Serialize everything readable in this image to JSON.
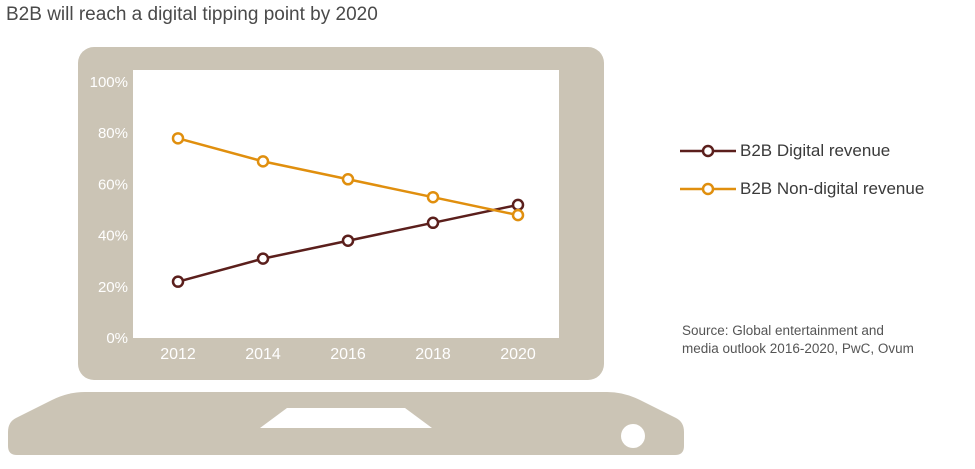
{
  "chart_data": {
    "type": "line",
    "title": "B2B will reach a digital tipping point by 2020",
    "categories": [
      "2012",
      "2014",
      "2016",
      "2018",
      "2020"
    ],
    "series": [
      {
        "name": "B2B Digital revenue",
        "color": "#5b1f1c",
        "values": [
          22,
          31,
          38,
          45,
          52
        ]
      },
      {
        "name": "B2B Non-digital revenue",
        "color": "#e08f0e",
        "values": [
          78,
          69,
          62,
          55,
          48
        ]
      }
    ],
    "y_ticks": [
      "0%",
      "20%",
      "40%",
      "60%",
      "80%",
      "100%"
    ],
    "ylim": [
      0,
      100
    ],
    "xlabel": "",
    "ylabel": "",
    "grid": false,
    "legend_position": "right"
  },
  "source": {
    "line1": "Source: Global entertainment and",
    "line2": "media outlook 2016-2020, PwC, Ovum"
  },
  "colors": {
    "laptop": "#cbc4b5",
    "tick_text": "#ffffff",
    "title_text": "#4a4a4a"
  }
}
